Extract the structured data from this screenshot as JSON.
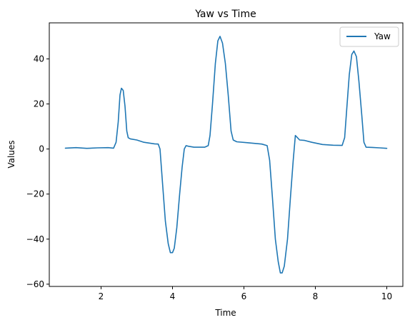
{
  "chart_data": {
    "type": "line",
    "title": "Yaw vs Time",
    "xlabel": "Time",
    "ylabel": "Values",
    "xlim": [
      0.55,
      10.45
    ],
    "ylim": [
      -61,
      56
    ],
    "xticks": [
      2,
      4,
      6,
      8,
      10
    ],
    "xtick_labels": [
      "2",
      "4",
      "6",
      "8",
      "10"
    ],
    "yticks": [
      -60,
      -40,
      -20,
      0,
      20,
      40
    ],
    "ytick_labels": [
      "−60",
      "−40",
      "−20",
      "0",
      "20",
      "40"
    ],
    "grid": false,
    "legend_position": "top-right",
    "series": [
      {
        "name": "Yaw",
        "color": "#1f77b4",
        "points": [
          [
            1.0,
            0.4
          ],
          [
            1.3,
            0.6
          ],
          [
            1.6,
            0.3
          ],
          [
            1.9,
            0.5
          ],
          [
            2.2,
            0.6
          ],
          [
            2.35,
            0.4
          ],
          [
            2.42,
            3
          ],
          [
            2.48,
            12
          ],
          [
            2.53,
            24
          ],
          [
            2.57,
            27
          ],
          [
            2.62,
            26
          ],
          [
            2.67,
            19
          ],
          [
            2.72,
            8
          ],
          [
            2.76,
            5
          ],
          [
            2.82,
            4.5
          ],
          [
            3.0,
            4
          ],
          [
            3.2,
            3
          ],
          [
            3.5,
            2.3
          ],
          [
            3.6,
            2.2
          ],
          [
            3.65,
            0
          ],
          [
            3.72,
            -15
          ],
          [
            3.8,
            -32
          ],
          [
            3.88,
            -42
          ],
          [
            3.94,
            -46
          ],
          [
            4.0,
            -46
          ],
          [
            4.05,
            -44
          ],
          [
            4.12,
            -35
          ],
          [
            4.2,
            -20
          ],
          [
            4.27,
            -8
          ],
          [
            4.33,
            0
          ],
          [
            4.38,
            1.5
          ],
          [
            4.45,
            1.2
          ],
          [
            4.6,
            0.8
          ],
          [
            4.9,
            0.8
          ],
          [
            5.0,
            1.5
          ],
          [
            5.05,
            6
          ],
          [
            5.12,
            20
          ],
          [
            5.2,
            38
          ],
          [
            5.27,
            48
          ],
          [
            5.33,
            50
          ],
          [
            5.4,
            47
          ],
          [
            5.48,
            38
          ],
          [
            5.56,
            24
          ],
          [
            5.64,
            8
          ],
          [
            5.7,
            4
          ],
          [
            5.8,
            3.2
          ],
          [
            6.1,
            2.8
          ],
          [
            6.5,
            2.2
          ],
          [
            6.65,
            1.5
          ],
          [
            6.72,
            -5
          ],
          [
            6.8,
            -22
          ],
          [
            6.88,
            -40
          ],
          [
            6.96,
            -50
          ],
          [
            7.02,
            -55
          ],
          [
            7.07,
            -55
          ],
          [
            7.13,
            -52
          ],
          [
            7.22,
            -40
          ],
          [
            7.3,
            -22
          ],
          [
            7.38,
            -5
          ],
          [
            7.44,
            6
          ],
          [
            7.5,
            5
          ],
          [
            7.56,
            4
          ],
          [
            7.7,
            3.8
          ],
          [
            7.9,
            3
          ],
          [
            8.2,
            2
          ],
          [
            8.5,
            1.7
          ],
          [
            8.75,
            1.6
          ],
          [
            8.82,
            5
          ],
          [
            8.88,
            18
          ],
          [
            8.95,
            33
          ],
          [
            9.02,
            42
          ],
          [
            9.08,
            43.5
          ],
          [
            9.15,
            41
          ],
          [
            9.22,
            30
          ],
          [
            9.3,
            15
          ],
          [
            9.36,
            3
          ],
          [
            9.42,
            0.8
          ],
          [
            9.6,
            0.7
          ],
          [
            9.8,
            0.5
          ],
          [
            10.0,
            0.3
          ]
        ]
      }
    ]
  }
}
